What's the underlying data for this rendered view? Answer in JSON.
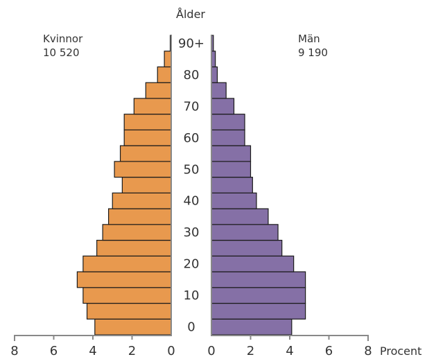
{
  "chart_data": {
    "type": "bar",
    "subtype": "population-pyramid",
    "y_axis_title": "Ålder",
    "x_axis_unit": "Procent",
    "x_ticks_left": [
      "8",
      "6",
      "4",
      "2",
      "0"
    ],
    "x_ticks_right": [
      "0",
      "2",
      "4",
      "6",
      "8"
    ],
    "xlim": [
      0,
      8
    ],
    "age_labels": [
      "0",
      "10",
      "20",
      "30",
      "40",
      "50",
      "60",
      "70",
      "80",
      "90+"
    ],
    "age_groups": [
      "0-4",
      "5-9",
      "10-14",
      "15-19",
      "20-24",
      "25-29",
      "30-34",
      "35-39",
      "40-44",
      "45-49",
      "50-54",
      "55-59",
      "60-64",
      "65-69",
      "70-74",
      "75-79",
      "80-84",
      "85-89",
      "90+"
    ],
    "series": [
      {
        "name": "Kvinnor",
        "total": "10 520",
        "color": "#E8994E",
        "values": [
          3.9,
          4.3,
          4.5,
          4.8,
          4.5,
          3.8,
          3.5,
          3.2,
          3.0,
          2.5,
          2.9,
          2.6,
          2.4,
          2.4,
          1.9,
          1.3,
          0.7,
          0.35,
          0.05
        ]
      },
      {
        "name": "Män",
        "total": "9 190",
        "color": "#8570A6",
        "values": [
          4.1,
          4.8,
          4.8,
          4.8,
          4.2,
          3.6,
          3.4,
          2.9,
          2.3,
          2.1,
          2.0,
          2.0,
          1.7,
          1.7,
          1.15,
          0.75,
          0.3,
          0.2,
          0.1
        ]
      }
    ]
  }
}
